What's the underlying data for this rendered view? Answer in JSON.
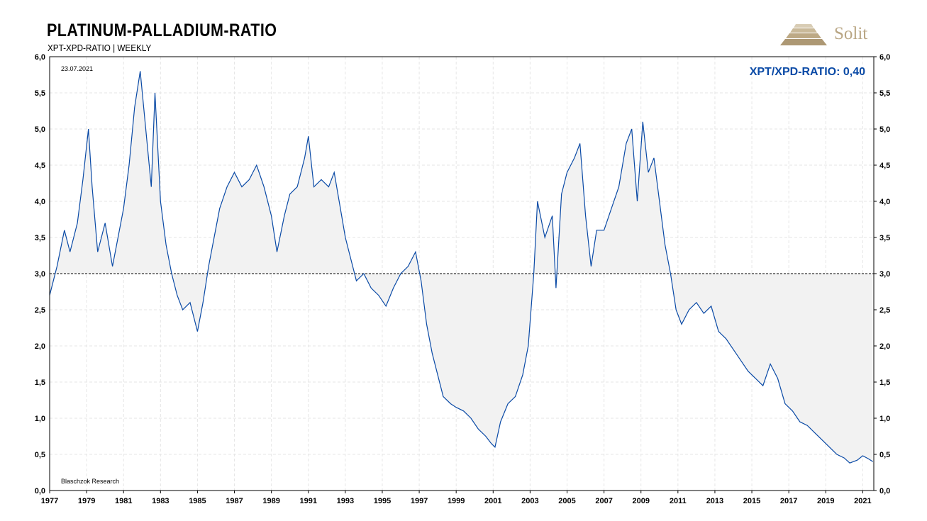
{
  "header": {
    "title": "PLATINUM-PALLADIUM-RATIO",
    "subtitle": "XPT-XPD-RATIO | WEEKLY"
  },
  "logo": {
    "text": "Solit",
    "icon": "stepped-pyramid-icon",
    "color": "#b9a684"
  },
  "chart_data": {
    "type": "line",
    "date_label": "23.07.2021",
    "source_label": "Blaschzok  Research",
    "readout": "XPT/XPD-RATIO: 0,40",
    "reference_line": {
      "y": 3.0,
      "style": "dashed"
    },
    "xlim": [
      1977.0,
      2021.6
    ],
    "ylim": [
      0,
      6
    ],
    "x_ticks": [
      "1977",
      "1979",
      "1981",
      "1983",
      "1985",
      "1987",
      "1989",
      "1991",
      "1993",
      "1995",
      "1997",
      "1999",
      "2001",
      "2003",
      "2005",
      "2007",
      "2009",
      "2011",
      "2013",
      "2015",
      "2017",
      "2019",
      "2021"
    ],
    "y_ticks": [
      "0,0",
      "0,5",
      "1,0",
      "1,5",
      "2,0",
      "2,5",
      "3,0",
      "3,5",
      "4,0",
      "4,5",
      "5,0",
      "5,5",
      "6,0"
    ],
    "grid": true,
    "series": [
      {
        "color": "#0a4aa6",
        "fill": "#f2f2f2",
        "points": [
          [
            1977.0,
            2.7
          ],
          [
            1977.4,
            3.1
          ],
          [
            1977.8,
            3.6
          ],
          [
            1978.1,
            3.3
          ],
          [
            1978.5,
            3.7
          ],
          [
            1978.8,
            4.3
          ],
          [
            1979.1,
            5.0
          ],
          [
            1979.3,
            4.2
          ],
          [
            1979.6,
            3.3
          ],
          [
            1980.0,
            3.7
          ],
          [
            1980.4,
            3.1
          ],
          [
            1980.7,
            3.5
          ],
          [
            1981.0,
            3.9
          ],
          [
            1981.3,
            4.5
          ],
          [
            1981.6,
            5.3
          ],
          [
            1981.9,
            5.8
          ],
          [
            1982.2,
            5.0
          ],
          [
            1982.5,
            4.2
          ],
          [
            1982.7,
            5.5
          ],
          [
            1983.0,
            4.0
          ],
          [
            1983.3,
            3.4
          ],
          [
            1983.6,
            3.0
          ],
          [
            1983.9,
            2.7
          ],
          [
            1984.2,
            2.5
          ],
          [
            1984.6,
            2.6
          ],
          [
            1985.0,
            2.2
          ],
          [
            1985.3,
            2.6
          ],
          [
            1985.6,
            3.1
          ],
          [
            1985.9,
            3.5
          ],
          [
            1986.2,
            3.9
          ],
          [
            1986.6,
            4.2
          ],
          [
            1987.0,
            4.4
          ],
          [
            1987.4,
            4.2
          ],
          [
            1987.8,
            4.3
          ],
          [
            1988.2,
            4.5
          ],
          [
            1988.6,
            4.2
          ],
          [
            1989.0,
            3.8
          ],
          [
            1989.3,
            3.3
          ],
          [
            1989.7,
            3.8
          ],
          [
            1990.0,
            4.1
          ],
          [
            1990.4,
            4.2
          ],
          [
            1990.8,
            4.6
          ],
          [
            1991.0,
            4.9
          ],
          [
            1991.3,
            4.2
          ],
          [
            1991.7,
            4.3
          ],
          [
            1992.1,
            4.2
          ],
          [
            1992.4,
            4.4
          ],
          [
            1992.8,
            3.8
          ],
          [
            1993.0,
            3.5
          ],
          [
            1993.3,
            3.2
          ],
          [
            1993.6,
            2.9
          ],
          [
            1994.0,
            3.0
          ],
          [
            1994.4,
            2.8
          ],
          [
            1994.8,
            2.7
          ],
          [
            1995.2,
            2.55
          ],
          [
            1995.6,
            2.8
          ],
          [
            1996.0,
            3.0
          ],
          [
            1996.4,
            3.1
          ],
          [
            1996.8,
            3.3
          ],
          [
            1997.1,
            2.9
          ],
          [
            1997.4,
            2.3
          ],
          [
            1997.7,
            1.9
          ],
          [
            1998.0,
            1.6
          ],
          [
            1998.3,
            1.3
          ],
          [
            1998.7,
            1.2
          ],
          [
            1999.0,
            1.15
          ],
          [
            1999.4,
            1.1
          ],
          [
            1999.8,
            1.0
          ],
          [
            2000.2,
            0.85
          ],
          [
            2000.6,
            0.75
          ],
          [
            2000.9,
            0.65
          ],
          [
            2001.1,
            0.6
          ],
          [
            2001.4,
            0.95
          ],
          [
            2001.8,
            1.2
          ],
          [
            2002.2,
            1.3
          ],
          [
            2002.6,
            1.6
          ],
          [
            2002.9,
            2.0
          ],
          [
            2003.2,
            3.0
          ],
          [
            2003.4,
            4.0
          ],
          [
            2003.8,
            3.5
          ],
          [
            2004.2,
            3.8
          ],
          [
            2004.4,
            2.8
          ],
          [
            2004.7,
            4.1
          ],
          [
            2005.0,
            4.4
          ],
          [
            2005.4,
            4.6
          ],
          [
            2005.7,
            4.8
          ],
          [
            2006.0,
            3.8
          ],
          [
            2006.3,
            3.1
          ],
          [
            2006.6,
            3.6
          ],
          [
            2007.0,
            3.6
          ],
          [
            2007.4,
            3.9
          ],
          [
            2007.8,
            4.2
          ],
          [
            2008.2,
            4.8
          ],
          [
            2008.5,
            5.0
          ],
          [
            2008.8,
            4.0
          ],
          [
            2009.1,
            5.1
          ],
          [
            2009.4,
            4.4
          ],
          [
            2009.7,
            4.6
          ],
          [
            2010.0,
            4.0
          ],
          [
            2010.3,
            3.4
          ],
          [
            2010.6,
            3.0
          ],
          [
            2010.9,
            2.5
          ],
          [
            2011.2,
            2.3
          ],
          [
            2011.6,
            2.5
          ],
          [
            2012.0,
            2.6
          ],
          [
            2012.4,
            2.45
          ],
          [
            2012.8,
            2.55
          ],
          [
            2013.2,
            2.2
          ],
          [
            2013.6,
            2.1
          ],
          [
            2014.0,
            1.95
          ],
          [
            2014.4,
            1.8
          ],
          [
            2014.8,
            1.65
          ],
          [
            2015.2,
            1.55
          ],
          [
            2015.6,
            1.45
          ],
          [
            2016.0,
            1.75
          ],
          [
            2016.4,
            1.55
          ],
          [
            2016.8,
            1.2
          ],
          [
            2017.2,
            1.1
          ],
          [
            2017.6,
            0.95
          ],
          [
            2018.0,
            0.9
          ],
          [
            2018.4,
            0.8
          ],
          [
            2018.8,
            0.7
          ],
          [
            2019.2,
            0.6
          ],
          [
            2019.6,
            0.5
          ],
          [
            2020.0,
            0.45
          ],
          [
            2020.3,
            0.38
          ],
          [
            2020.7,
            0.42
          ],
          [
            2021.0,
            0.48
          ],
          [
            2021.3,
            0.44
          ],
          [
            2021.55,
            0.4
          ]
        ]
      }
    ]
  }
}
